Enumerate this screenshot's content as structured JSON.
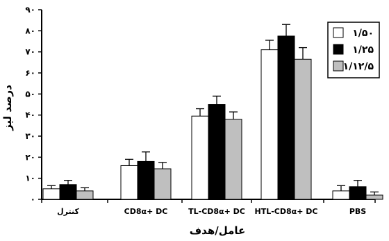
{
  "chart_data": {
    "type": "bar",
    "categories": [
      "کنترل",
      "CD8α+ DC",
      "TL-CD8α+ DC",
      "HTL-CD8α+ DC",
      "PBS"
    ],
    "series": [
      {
        "name": "۱/۵۰",
        "color": "#ffffff",
        "values": [
          5,
          16,
          39.5,
          71,
          4
        ],
        "errors": [
          1.5,
          3,
          3.5,
          4.5,
          2.5
        ]
      },
      {
        "name": "۱/۲۵",
        "color": "#000000",
        "values": [
          7,
          18,
          45,
          77.5,
          6
        ],
        "errors": [
          2,
          4.5,
          4,
          5.5,
          3
        ]
      },
      {
        "name": "۱/۱۲/۵",
        "color": "#bfbfbf",
        "values": [
          4,
          14.5,
          38,
          66.5,
          2
        ],
        "errors": [
          1.5,
          3,
          3.5,
          5.5,
          1.5
        ]
      }
    ],
    "ylim": [
      0,
      90
    ],
    "yticks": [
      "۰",
      "۱۰",
      "۲۰",
      "۳۰",
      "۴۰",
      "۵۰",
      "۶۰",
      "۷۰",
      "۸۰",
      "۹۰"
    ],
    "xlabel": "عامل/هدف",
    "ylabel": "درصد لیز",
    "legend_position": "top-right",
    "grid": false
  }
}
